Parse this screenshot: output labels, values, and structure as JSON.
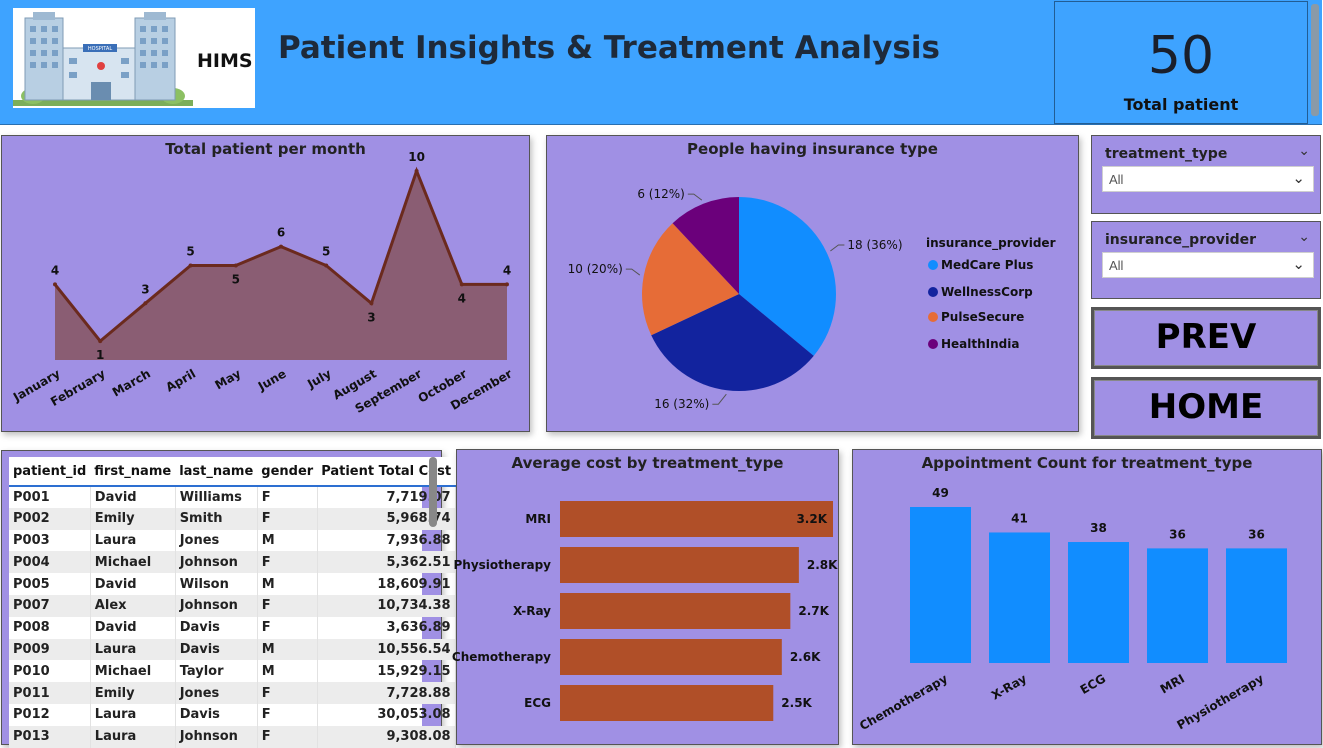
{
  "header": {
    "title": "Patient Insights & Treatment Analysis",
    "logo_text": "HIMS",
    "logo_sign": "HOSPITAL",
    "kpi_value": "50",
    "kpi_label": "Total patient"
  },
  "colors": {
    "header_bg": "#3ea3ff",
    "panel_bg": "#a090e4",
    "line_fill": "#8a5d73",
    "line_stroke": "#6b2a1e",
    "bar_orange": "#b04f28",
    "bar_blue": "#118dff",
    "pie": [
      "#118dff",
      "#12239e",
      "#e66c37",
      "#6b007b"
    ]
  },
  "line_chart": {
    "title": "Total patient per month",
    "chart_data": {
      "type": "area",
      "categories": [
        "January",
        "February",
        "March",
        "April",
        "May",
        "June",
        "July",
        "August",
        "September",
        "October",
        "December"
      ],
      "values": [
        4,
        1,
        3,
        5,
        5,
        6,
        5,
        3,
        10,
        4,
        4
      ],
      "ylim": [
        0,
        10
      ]
    }
  },
  "pie_chart": {
    "title": "People having insurance type",
    "legend_title": "insurance_provider",
    "chart_data": {
      "type": "pie",
      "labels": [
        "MedCare Plus",
        "WellnessCorp",
        "PulseSecure",
        "HealthIndia"
      ],
      "values": [
        18,
        16,
        10,
        6
      ],
      "data_labels": [
        "18 (36%)",
        "16 (32%)",
        "10 (20%)",
        "6 (12%)"
      ]
    }
  },
  "slicers": [
    {
      "title": "treatment_type",
      "value": "All"
    },
    {
      "title": "insurance_provider",
      "value": "All"
    }
  ],
  "nav": {
    "prev": "PREV",
    "home": "HOME"
  },
  "table": {
    "columns": [
      "patient_id",
      "first_name",
      "last_name",
      "gender",
      "Patient Total Cost"
    ],
    "rows": [
      [
        "P001",
        "David",
        "Williams",
        "F",
        "7,719.07"
      ],
      [
        "P002",
        "Emily",
        "Smith",
        "F",
        "5,968.74"
      ],
      [
        "P003",
        "Laura",
        "Jones",
        "M",
        "7,936.88"
      ],
      [
        "P004",
        "Michael",
        "Johnson",
        "F",
        "5,362.51"
      ],
      [
        "P005",
        "David",
        "Wilson",
        "M",
        "18,609.91"
      ],
      [
        "P007",
        "Alex",
        "Johnson",
        "F",
        "10,734.38"
      ],
      [
        "P008",
        "David",
        "Davis",
        "F",
        "3,636.89"
      ],
      [
        "P009",
        "Laura",
        "Davis",
        "M",
        "10,556.54"
      ],
      [
        "P010",
        "Michael",
        "Taylor",
        "M",
        "15,929.15"
      ],
      [
        "P011",
        "Emily",
        "Jones",
        "F",
        "7,728.88"
      ],
      [
        "P012",
        "Laura",
        "Davis",
        "F",
        "30,053.08"
      ],
      [
        "P013",
        "Laura",
        "Johnson",
        "F",
        "9,308.08"
      ]
    ]
  },
  "avg_cost_chart": {
    "title": "Average cost by treatment_type",
    "chart_data": {
      "type": "bar",
      "categories": [
        "MRI",
        "Physiotherapy",
        "X-Ray",
        "Chemotherapy",
        "ECG"
      ],
      "values": [
        3.2,
        2.8,
        2.7,
        2.6,
        2.5
      ],
      "data_labels": [
        "3.2K",
        "2.8K",
        "2.7K",
        "2.6K",
        "2.5K"
      ]
    }
  },
  "appt_chart": {
    "title": "Appointment Count for treatment_type",
    "chart_data": {
      "type": "bar",
      "categories": [
        "Chemotherapy",
        "X-Ray",
        "ECG",
        "MRI",
        "Physiotherapy"
      ],
      "values": [
        49,
        41,
        38,
        36,
        36
      ]
    }
  }
}
